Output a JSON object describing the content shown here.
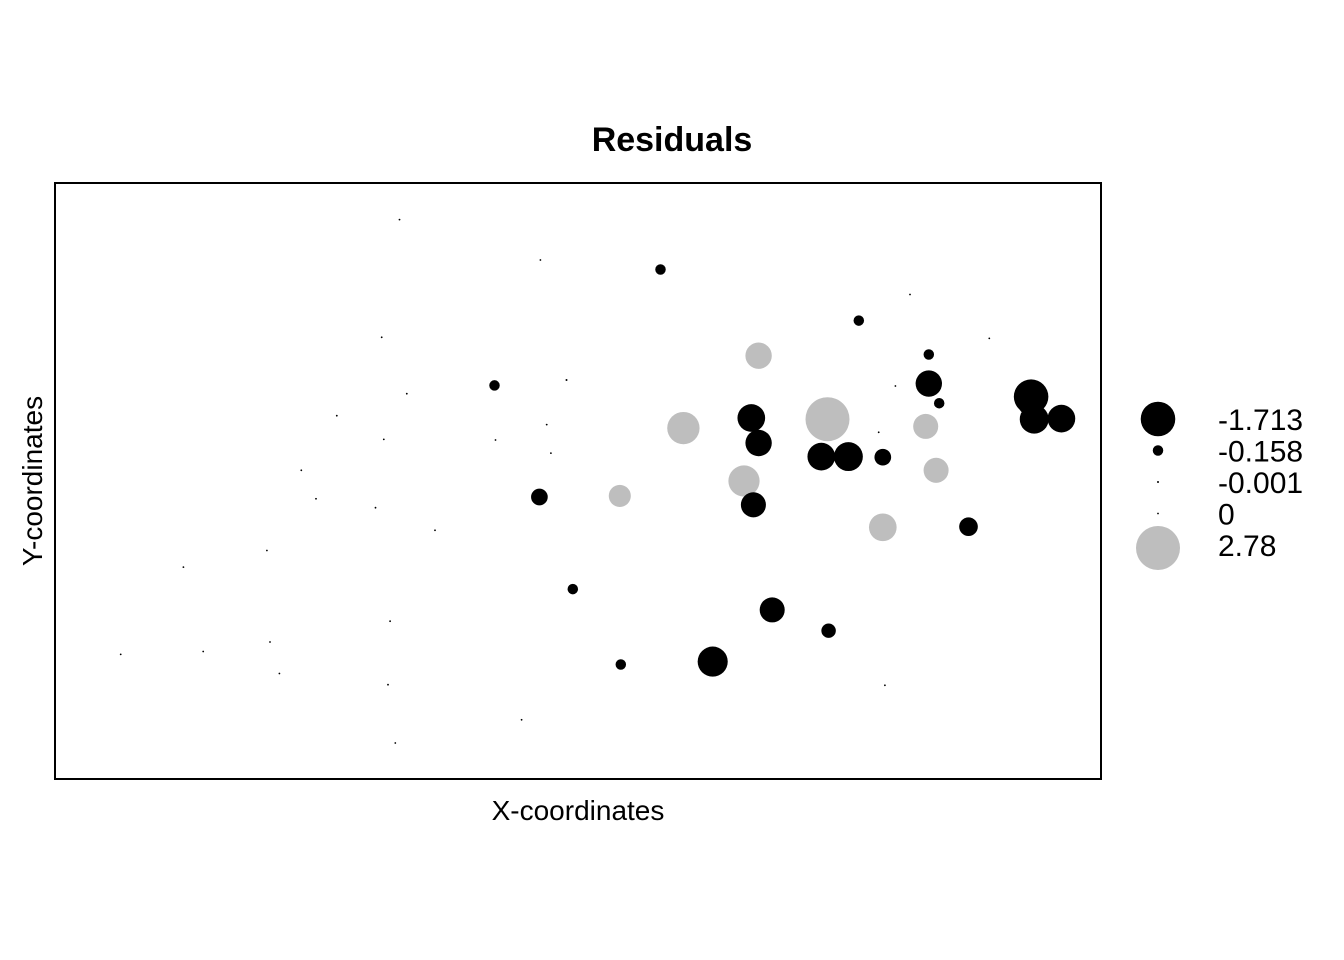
{
  "chart_data": {
    "type": "scatter",
    "title": "Residuals",
    "xlabel": "X-coordinates",
    "ylabel": "Y-coordinates",
    "xlim": [
      0,
      100
    ],
    "ylim": [
      0,
      100
    ],
    "x_ticks_shown": false,
    "y_ticks_shown": false,
    "grid": false,
    "legend_position": "right",
    "colors": {
      "negative": "#000000",
      "positive": "#bebebe",
      "axis": "#000000"
    },
    "legend": [
      {
        "label": "-1.713",
        "value": -1.713
      },
      {
        "label": "-0.158",
        "value": -0.158
      },
      {
        "label": "-0.001",
        "value": -0.001
      },
      {
        "label": "0",
        "value": 0
      },
      {
        "label": "2.78",
        "value": 2.78
      }
    ],
    "points": [
      {
        "x": 32.9,
        "y": 94.0,
        "residual": 0
      },
      {
        "x": 46.4,
        "y": 87.2,
        "residual": 0
      },
      {
        "x": 57.9,
        "y": 85.6,
        "residual": -0.158
      },
      {
        "x": 76.9,
        "y": 77.0,
        "residual": -0.158
      },
      {
        "x": 81.8,
        "y": 81.4,
        "residual": 0
      },
      {
        "x": 31.2,
        "y": 74.2,
        "residual": 0
      },
      {
        "x": 89.4,
        "y": 74.0,
        "residual": 0
      },
      {
        "x": 83.6,
        "y": 71.3,
        "residual": -0.158
      },
      {
        "x": 67.3,
        "y": 71.1,
        "residual": 1.0
      },
      {
        "x": 42.0,
        "y": 66.1,
        "residual": -0.158
      },
      {
        "x": 48.9,
        "y": 67.0,
        "residual": -0.001
      },
      {
        "x": 80.4,
        "y": 66.0,
        "residual": 0
      },
      {
        "x": 83.6,
        "y": 66.4,
        "residual": -1.0
      },
      {
        "x": 84.6,
        "y": 63.1,
        "residual": -0.158
      },
      {
        "x": 93.2,
        "y": 63.0,
        "residual": -0.7
      },
      {
        "x": 93.7,
        "y": 60.4,
        "residual": -1.2
      },
      {
        "x": 96.3,
        "y": 60.5,
        "residual": -1.1
      },
      {
        "x": 93.4,
        "y": 64.2,
        "residual": -1.713
      },
      {
        "x": 33.6,
        "y": 64.7,
        "residual": 0
      },
      {
        "x": 66.6,
        "y": 60.6,
        "residual": -1.1
      },
      {
        "x": 73.9,
        "y": 60.4,
        "residual": 2.78
      },
      {
        "x": 60.1,
        "y": 58.9,
        "residual": 1.5
      },
      {
        "x": 74.7,
        "y": 59.6,
        "residual": 0.6
      },
      {
        "x": 83.3,
        "y": 59.2,
        "residual": 0.9
      },
      {
        "x": 26.9,
        "y": 61.0,
        "residual": 0
      },
      {
        "x": 47.0,
        "y": 59.5,
        "residual": 0
      },
      {
        "x": 31.4,
        "y": 57.0,
        "residual": 0
      },
      {
        "x": 42.1,
        "y": 56.9,
        "residual": 0
      },
      {
        "x": 67.3,
        "y": 56.4,
        "residual": -1.0
      },
      {
        "x": 78.8,
        "y": 58.2,
        "residual": 0
      },
      {
        "x": 47.4,
        "y": 54.7,
        "residual": 0
      },
      {
        "x": 73.3,
        "y": 54.1,
        "residual": -1.1
      },
      {
        "x": 75.9,
        "y": 54.1,
        "residual": -1.2
      },
      {
        "x": 79.2,
        "y": 54.0,
        "residual": -0.4
      },
      {
        "x": 23.5,
        "y": 51.8,
        "residual": 0
      },
      {
        "x": 84.3,
        "y": 51.8,
        "residual": 0.9
      },
      {
        "x": 65.9,
        "y": 50.0,
        "residual": 1.4
      },
      {
        "x": 46.3,
        "y": 47.3,
        "residual": -0.4
      },
      {
        "x": 54.0,
        "y": 47.5,
        "residual": 0.7
      },
      {
        "x": 24.9,
        "y": 47.0,
        "residual": 0
      },
      {
        "x": 30.6,
        "y": 45.5,
        "residual": 0
      },
      {
        "x": 66.8,
        "y": 46.0,
        "residual": -0.9
      },
      {
        "x": 36.3,
        "y": 41.7,
        "residual": 0
      },
      {
        "x": 79.2,
        "y": 42.2,
        "residual": 1.1
      },
      {
        "x": 87.4,
        "y": 42.3,
        "residual": -0.5
      },
      {
        "x": 20.2,
        "y": 38.3,
        "residual": 0
      },
      {
        "x": 12.2,
        "y": 35.5,
        "residual": 0
      },
      {
        "x": 49.5,
        "y": 31.8,
        "residual": -0.158
      },
      {
        "x": 68.6,
        "y": 28.3,
        "residual": -0.9
      },
      {
        "x": 32.0,
        "y": 26.4,
        "residual": 0
      },
      {
        "x": 74.0,
        "y": 24.8,
        "residual": -0.3
      },
      {
        "x": 20.5,
        "y": 22.9,
        "residual": 0
      },
      {
        "x": 6.2,
        "y": 20.8,
        "residual": 0
      },
      {
        "x": 14.1,
        "y": 21.3,
        "residual": 0
      },
      {
        "x": 54.1,
        "y": 19.1,
        "residual": -0.158
      },
      {
        "x": 62.9,
        "y": 19.6,
        "residual": -1.3
      },
      {
        "x": 21.4,
        "y": 17.6,
        "residual": 0
      },
      {
        "x": 31.8,
        "y": 15.7,
        "residual": 0
      },
      {
        "x": 79.4,
        "y": 15.6,
        "residual": 0
      },
      {
        "x": 44.6,
        "y": 9.8,
        "residual": 0
      },
      {
        "x": 32.5,
        "y": 5.9,
        "residual": 0
      }
    ]
  }
}
